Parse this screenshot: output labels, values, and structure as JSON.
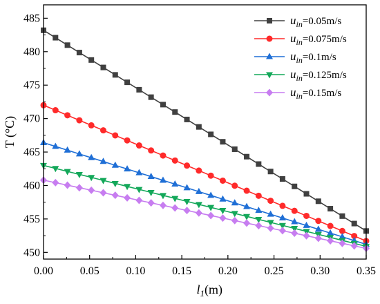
{
  "chart_data": {
    "type": "line",
    "title": "",
    "xlabel_main": "l",
    "xlabel_sub": "1",
    "xlabel_unit": "(m)",
    "ylabel": "T (°C)",
    "xlim": [
      0,
      0.35
    ],
    "ylim": [
      449,
      487
    ],
    "xticks": [
      0.0,
      0.05,
      0.1,
      0.15,
      0.2,
      0.25,
      0.3,
      0.35
    ],
    "xtick_labels": [
      "0.00",
      "0.05",
      "0.10",
      "0.15",
      "0.20",
      "0.25",
      "0.30",
      "0.35"
    ],
    "yticks": [
      450,
      455,
      460,
      465,
      470,
      475,
      480,
      485
    ],
    "ytick_labels": [
      "450",
      "455",
      "460",
      "465",
      "470",
      "475",
      "480",
      "485"
    ],
    "grid": false,
    "legend_position": "top-right",
    "series": [
      {
        "legend_var": "u",
        "legend_sub": "in",
        "legend_value": "=0.05m/s",
        "color": "#404040",
        "marker": "square",
        "start": [
          0.0,
          483.2
        ],
        "end": [
          0.35,
          453.2
        ]
      },
      {
        "legend_var": "u",
        "legend_sub": "in",
        "legend_value": "=0.075m/s",
        "color": "#ff2a2a",
        "marker": "circle",
        "start": [
          0.0,
          472.0
        ],
        "end": [
          0.35,
          451.7
        ]
      },
      {
        "legend_var": "u",
        "legend_sub": "in",
        "legend_value": "=0.1m/s",
        "color": "#1f6fd6",
        "marker": "triangle-up",
        "start": [
          0.0,
          466.4
        ],
        "end": [
          0.35,
          451.2
        ]
      },
      {
        "legend_var": "u",
        "legend_sub": "in",
        "legend_value": "=0.125m/s",
        "color": "#14a85a",
        "marker": "triangle-down",
        "start": [
          0.0,
          463.0
        ],
        "end": [
          0.35,
          450.9
        ]
      },
      {
        "legend_var": "u",
        "legend_sub": "in",
        "legend_value": "=0.15m/s",
        "color": "#c77df0",
        "marker": "diamond",
        "start": [
          0.0,
          460.8
        ],
        "end": [
          0.35,
          450.6
        ]
      }
    ],
    "points_per_series": 28
  }
}
